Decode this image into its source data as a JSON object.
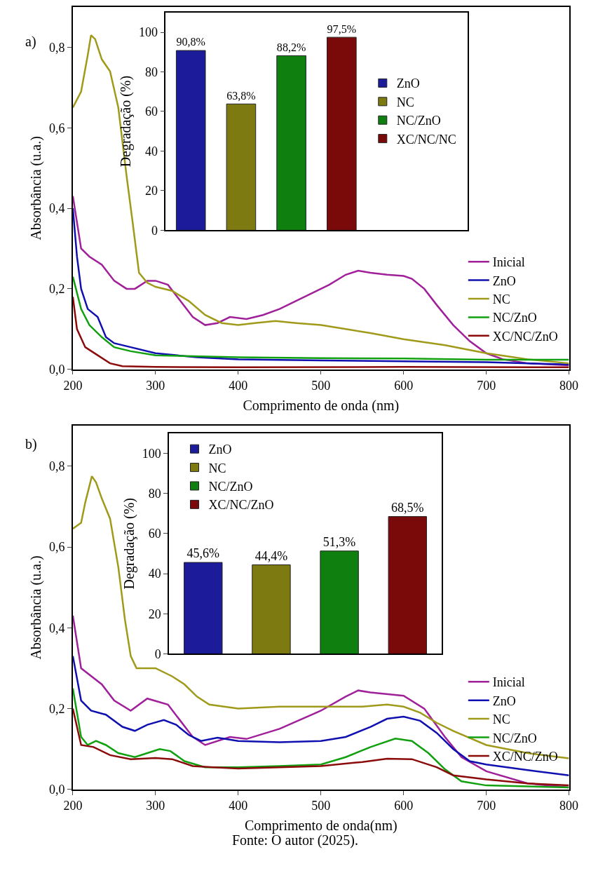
{
  "chart_data": [
    {
      "type": "line",
      "xlabel": "Comprimento de onda (nm)",
      "ylabel": "Absorbância (u.a.)",
      "annotations": [
        "a)"
      ],
      "xlim": [
        200,
        800
      ],
      "xticks": [
        200,
        300,
        400,
        500,
        600,
        700,
        800
      ],
      "ylim": [
        0,
        0.9
      ],
      "yticks": [
        {
          "value": 0,
          "label": "0,0"
        },
        {
          "value": 0.2,
          "label": "0,2"
        },
        {
          "value": 0.4,
          "label": "0,4"
        },
        {
          "value": 0.6,
          "label": "0,6"
        },
        {
          "value": 0.8,
          "label": "0,8"
        }
      ],
      "legend": "bottom right",
      "marker": "none",
      "line_style": "solid",
      "series": [
        {
          "name": "Inicial",
          "color": "#a0209a",
          "x": [
            200,
            210,
            220,
            235,
            250,
            265,
            275,
            290,
            300,
            315,
            330,
            345,
            360,
            375,
            390,
            410,
            430,
            450,
            470,
            490,
            510,
            530,
            545,
            560,
            580,
            600,
            610,
            625,
            640,
            660,
            680,
            700,
            720,
            750,
            800
          ],
          "values": [
            0.43,
            0.3,
            0.28,
            0.26,
            0.22,
            0.2,
            0.2,
            0.22,
            0.22,
            0.21,
            0.17,
            0.13,
            0.11,
            0.115,
            0.13,
            0.125,
            0.135,
            0.15,
            0.17,
            0.19,
            0.21,
            0.235,
            0.245,
            0.24,
            0.235,
            0.232,
            0.225,
            0.2,
            0.16,
            0.11,
            0.07,
            0.04,
            0.025,
            0.015,
            0.01
          ]
        },
        {
          "name": "ZnO",
          "color": "#1010b0",
          "x": [
            200,
            205,
            210,
            218,
            230,
            240,
            250,
            270,
            300,
            350,
            400,
            500,
            600,
            700,
            800
          ],
          "values": [
            0.4,
            0.28,
            0.2,
            0.15,
            0.13,
            0.08,
            0.065,
            0.055,
            0.04,
            0.03,
            0.025,
            0.022,
            0.02,
            0.018,
            0.012
          ]
        },
        {
          "name": "NC",
          "color": "#a09a1a",
          "x": [
            200,
            210,
            218,
            222,
            227,
            235,
            245,
            255,
            265,
            272,
            280,
            290,
            300,
            320,
            340,
            360,
            380,
            400,
            420,
            445,
            470,
            500,
            530,
            560,
            600,
            650,
            700,
            750,
            800
          ],
          "values": [
            0.65,
            0.69,
            0.78,
            0.83,
            0.82,
            0.77,
            0.74,
            0.65,
            0.48,
            0.37,
            0.24,
            0.215,
            0.205,
            0.195,
            0.17,
            0.135,
            0.115,
            0.11,
            0.115,
            0.12,
            0.115,
            0.11,
            0.1,
            0.09,
            0.075,
            0.06,
            0.04,
            0.025,
            0.015
          ]
        },
        {
          "name": "NC/ZnO",
          "color": "#10a010",
          "x": [
            200,
            210,
            220,
            235,
            250,
            270,
            300,
            400,
            500,
            600,
            700,
            800
          ],
          "values": [
            0.23,
            0.15,
            0.11,
            0.08,
            0.055,
            0.045,
            0.035,
            0.03,
            0.028,
            0.027,
            0.024,
            0.024
          ]
        },
        {
          "name": "XC/NC/ZnO",
          "color": "#8b0a0a",
          "x": [
            200,
            205,
            215,
            230,
            245,
            260,
            300,
            400,
            600,
            800
          ],
          "values": [
            0.18,
            0.1,
            0.055,
            0.035,
            0.015,
            0.008,
            0.006,
            0.005,
            0.006,
            0.005
          ]
        }
      ]
    },
    {
      "type": "bar",
      "ylabel": "Degradação (%)",
      "categories": [
        null,
        null,
        null,
        null,
        null,
        null
      ],
      "ylim": [
        0,
        110
      ],
      "yticks": [
        0,
        20,
        40,
        60,
        80,
        100
      ],
      "tick_labels": "y",
      "legend": "right",
      "series": [
        {
          "name": "ZnO",
          "color": "#1c1c9a",
          "values": [
            90.8,
            null,
            null,
            null,
            null,
            null
          ],
          "value_labels": [
            "90,8%",
            null,
            null,
            null,
            null,
            null
          ]
        },
        {
          "name": "NC",
          "color": "#7d7a12",
          "values": [
            null,
            63.8,
            null,
            null,
            null,
            null
          ],
          "value_labels": [
            null,
            "63,8%",
            null,
            null,
            null,
            null
          ]
        },
        {
          "name": "NC/ZnO",
          "color": "#0f800f",
          "values": [
            null,
            null,
            88.2,
            null,
            null,
            null
          ],
          "value_labels": [
            null,
            null,
            "88,2%",
            null,
            null,
            null
          ]
        },
        {
          "name": "XC/NC/NC",
          "color": "#7a0a0a",
          "values": [
            null,
            null,
            null,
            97.5,
            null,
            null
          ],
          "value_labels": [
            null,
            null,
            null,
            "97,5%",
            null,
            null
          ]
        }
      ]
    },
    {
      "type": "line",
      "xlabel": "Comprimento de onda(nm)",
      "ylabel": "Absorbância (u.a.)",
      "annotations": [
        "b)",
        "Fonte: O autor (2025)."
      ],
      "xlim": [
        200,
        800
      ],
      "xticks": [
        200,
        300,
        400,
        500,
        600,
        700,
        800
      ],
      "ylim": [
        0,
        0.9
      ],
      "yticks": [
        {
          "value": 0,
          "label": "0,0"
        },
        {
          "value": 0.2,
          "label": "0,2"
        },
        {
          "value": 0.4,
          "label": "0,4"
        },
        {
          "value": 0.6,
          "label": "0,6"
        },
        {
          "value": 0.8,
          "label": "0,8"
        }
      ],
      "legend": "bottom right",
      "marker": "none",
      "line_style": "solid",
      "series": [
        {
          "name": "Inicial",
          "color": "#a0209a",
          "x": [
            200,
            210,
            235,
            250,
            270,
            290,
            315,
            330,
            345,
            360,
            390,
            410,
            450,
            500,
            530,
            545,
            560,
            600,
            625,
            650,
            670,
            700,
            750,
            800
          ],
          "values": [
            0.43,
            0.3,
            0.26,
            0.22,
            0.195,
            0.225,
            0.21,
            0.17,
            0.13,
            0.11,
            0.13,
            0.125,
            0.15,
            0.195,
            0.23,
            0.245,
            0.24,
            0.232,
            0.2,
            0.13,
            0.08,
            0.045,
            0.015,
            0.005
          ]
        },
        {
          "name": "ZnO",
          "color": "#1010b0",
          "x": [
            200,
            210,
            222,
            240,
            260,
            275,
            290,
            310,
            325,
            340,
            355,
            375,
            400,
            450,
            500,
            530,
            560,
            580,
            600,
            620,
            640,
            660,
            680,
            700,
            750,
            800
          ],
          "values": [
            0.33,
            0.22,
            0.195,
            0.185,
            0.155,
            0.145,
            0.16,
            0.172,
            0.16,
            0.135,
            0.12,
            0.128,
            0.12,
            0.117,
            0.12,
            0.13,
            0.155,
            0.175,
            0.18,
            0.17,
            0.14,
            0.1,
            0.07,
            0.062,
            0.048,
            0.035
          ]
        },
        {
          "name": "NC",
          "color": "#a09a1a",
          "x": [
            200,
            210,
            215,
            223,
            228,
            235,
            245,
            255,
            263,
            270,
            277,
            290,
            300,
            320,
            335,
            350,
            365,
            400,
            450,
            500,
            550,
            580,
            600,
            620,
            640,
            660,
            700,
            750,
            800
          ],
          "values": [
            0.645,
            0.66,
            0.71,
            0.775,
            0.76,
            0.72,
            0.67,
            0.55,
            0.42,
            0.33,
            0.3,
            0.3,
            0.3,
            0.28,
            0.26,
            0.23,
            0.21,
            0.2,
            0.205,
            0.205,
            0.205,
            0.21,
            0.205,
            0.19,
            0.165,
            0.145,
            0.11,
            0.09,
            0.077
          ]
        },
        {
          "name": "NC/ZnO",
          "color": "#10a010",
          "x": [
            200,
            210,
            218,
            228,
            240,
            255,
            275,
            290,
            305,
            318,
            335,
            360,
            400,
            450,
            500,
            530,
            560,
            590,
            610,
            630,
            650,
            670,
            700,
            800
          ],
          "values": [
            0.25,
            0.13,
            0.11,
            0.12,
            0.11,
            0.09,
            0.08,
            0.09,
            0.1,
            0.095,
            0.07,
            0.055,
            0.055,
            0.058,
            0.062,
            0.08,
            0.105,
            0.126,
            0.12,
            0.09,
            0.05,
            0.02,
            0.01,
            0.005
          ]
        },
        {
          "name": "XC/NC/ZnO",
          "color": "#8b0a0a",
          "x": [
            200,
            210,
            225,
            245,
            270,
            300,
            320,
            345,
            370,
            400,
            450,
            500,
            550,
            580,
            610,
            640,
            660,
            700,
            750,
            800
          ],
          "values": [
            0.2,
            0.11,
            0.105,
            0.085,
            0.075,
            0.078,
            0.075,
            0.058,
            0.055,
            0.052,
            0.055,
            0.058,
            0.068,
            0.076,
            0.075,
            0.055,
            0.035,
            0.025,
            0.015,
            0.01
          ]
        }
      ]
    },
    {
      "type": "bar",
      "ylabel": "Degradação (%)",
      "categories": [
        null,
        null,
        null,
        null
      ],
      "ylim": [
        0,
        110
      ],
      "yticks": [
        0,
        20,
        40,
        60,
        80,
        100
      ],
      "tick_labels": "y",
      "legend": "top left",
      "series": [
        {
          "name": "ZnO",
          "color": "#1c1c9a",
          "values": [
            45.6,
            null,
            null,
            null
          ],
          "value_labels": [
            "45,6%",
            null,
            null,
            null
          ]
        },
        {
          "name": "NC",
          "color": "#7d7a12",
          "values": [
            null,
            44.4,
            null,
            null
          ],
          "value_labels": [
            null,
            "44,4%",
            null,
            null
          ]
        },
        {
          "name": "NC/ZnO",
          "color": "#0f800f",
          "values": [
            null,
            null,
            51.3,
            null
          ],
          "value_labels": [
            null,
            null,
            "51,3%",
            null
          ]
        },
        {
          "name": "XC/NC/ZnO",
          "color": "#7a0a0a",
          "values": [
            null,
            null,
            null,
            68.5
          ],
          "value_labels": [
            null,
            null,
            null,
            "68,5%"
          ]
        }
      ]
    }
  ]
}
